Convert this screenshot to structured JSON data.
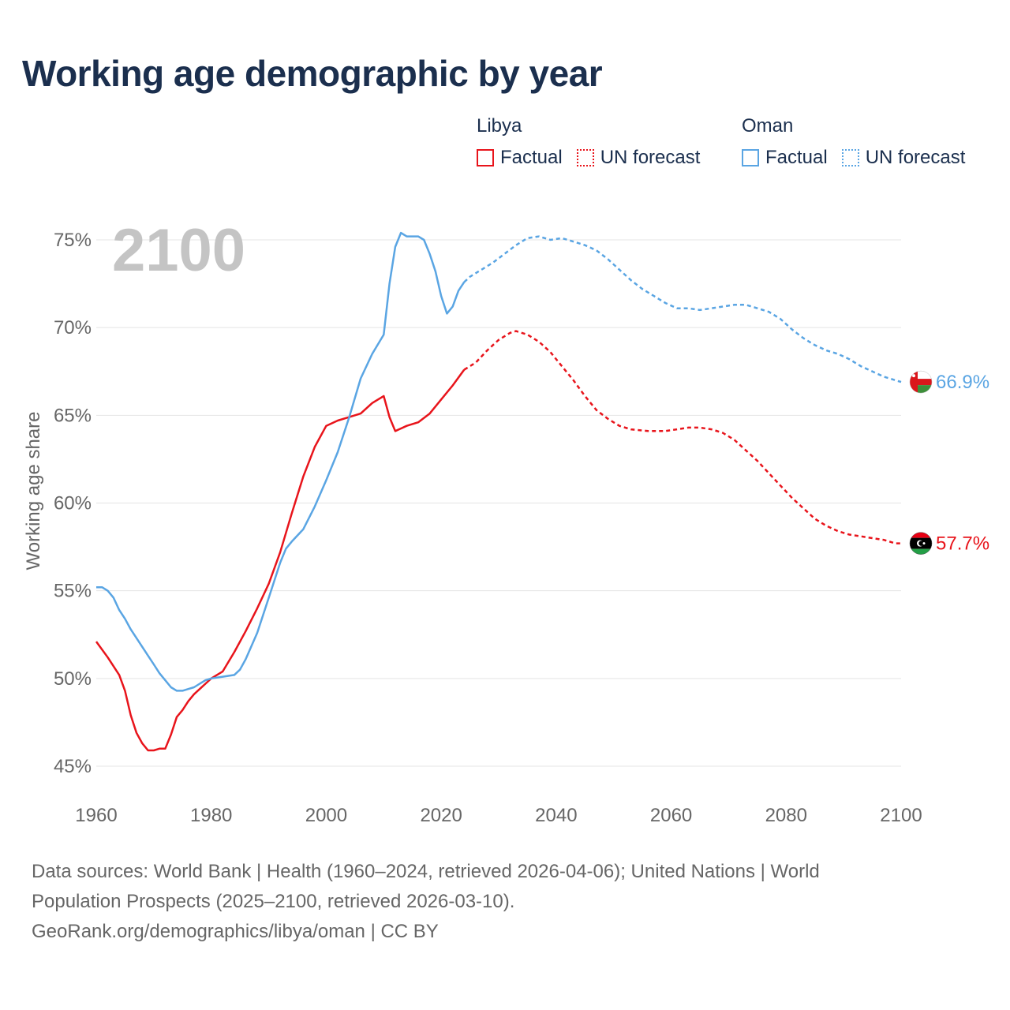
{
  "title": "Working age demographic by year",
  "year_watermark": "2100",
  "legend": [
    {
      "country": "Libya",
      "color": "#e8141b",
      "factual_label": "Factual",
      "forecast_label": "UN forecast"
    },
    {
      "country": "Oman",
      "color": "#5aa5e3",
      "factual_label": "Factual",
      "forecast_label": "UN forecast"
    }
  ],
  "footer": {
    "line1": "Data sources: World Bank | Health (1960–2024, retrieved 2026-04-06); United Nations | World",
    "line2": "Population Prospects (2025–2100, retrieved 2026-03-10).",
    "line3": "GeoRank.org/demographics/libya/oman | CC BY"
  },
  "chart_data": {
    "type": "line",
    "title": "Working age demographic by year",
    "xlabel": "",
    "ylabel": "Working age share",
    "xlim": [
      1960,
      2100
    ],
    "ylim": [
      45,
      75
    ],
    "x_ticks": [
      1960,
      1980,
      2000,
      2020,
      2040,
      2060,
      2080,
      2100
    ],
    "x_tick_labels": [
      "1960",
      "1980",
      "2000",
      "2020",
      "2040",
      "2060",
      "2080",
      "2100"
    ],
    "y_ticks": [
      45,
      50,
      55,
      60,
      65,
      70,
      75
    ],
    "y_tick_labels": [
      "45%",
      "50%",
      "55%",
      "60%",
      "65%",
      "70%",
      "75%"
    ],
    "grid": true,
    "forecast_start": 2025,
    "series": [
      {
        "name": "Libya",
        "color": "#e8141b",
        "end_label": "57.7%",
        "points": [
          [
            1960,
            52.1
          ],
          [
            1962,
            51.2
          ],
          [
            1964,
            50.2
          ],
          [
            1965,
            49.3
          ],
          [
            1966,
            47.9
          ],
          [
            1967,
            46.9
          ],
          [
            1968,
            46.3
          ],
          [
            1969,
            45.9
          ],
          [
            1970,
            45.9
          ],
          [
            1971,
            46.0
          ],
          [
            1972,
            46.0
          ],
          [
            1973,
            46.8
          ],
          [
            1974,
            47.8
          ],
          [
            1975,
            48.2
          ],
          [
            1976,
            48.7
          ],
          [
            1977,
            49.1
          ],
          [
            1978,
            49.4
          ],
          [
            1979,
            49.7
          ],
          [
            1980,
            50.0
          ],
          [
            1982,
            50.4
          ],
          [
            1984,
            51.5
          ],
          [
            1986,
            52.7
          ],
          [
            1988,
            54.0
          ],
          [
            1990,
            55.4
          ],
          [
            1992,
            57.2
          ],
          [
            1994,
            59.4
          ],
          [
            1996,
            61.5
          ],
          [
            1998,
            63.2
          ],
          [
            2000,
            64.4
          ],
          [
            2002,
            64.7
          ],
          [
            2004,
            64.9
          ],
          [
            2006,
            65.1
          ],
          [
            2008,
            65.7
          ],
          [
            2010,
            66.1
          ],
          [
            2011,
            64.9
          ],
          [
            2012,
            64.1
          ],
          [
            2014,
            64.4
          ],
          [
            2016,
            64.6
          ],
          [
            2018,
            65.1
          ],
          [
            2020,
            65.9
          ],
          [
            2022,
            66.7
          ],
          [
            2024,
            67.6
          ],
          [
            2026,
            68.0
          ],
          [
            2028,
            68.7
          ],
          [
            2030,
            69.3
          ],
          [
            2032,
            69.7
          ],
          [
            2033,
            69.8
          ],
          [
            2035,
            69.6
          ],
          [
            2037,
            69.2
          ],
          [
            2039,
            68.6
          ],
          [
            2041,
            67.8
          ],
          [
            2043,
            67.0
          ],
          [
            2045,
            66.1
          ],
          [
            2047,
            65.3
          ],
          [
            2049,
            64.8
          ],
          [
            2051,
            64.4
          ],
          [
            2053,
            64.2
          ],
          [
            2056,
            64.1
          ],
          [
            2059,
            64.1
          ],
          [
            2061,
            64.2
          ],
          [
            2063,
            64.3
          ],
          [
            2065,
            64.3
          ],
          [
            2067,
            64.2
          ],
          [
            2069,
            64.0
          ],
          [
            2071,
            63.6
          ],
          [
            2073,
            63.0
          ],
          [
            2075,
            62.4
          ],
          [
            2077,
            61.7
          ],
          [
            2079,
            61.0
          ],
          [
            2081,
            60.3
          ],
          [
            2083,
            59.7
          ],
          [
            2085,
            59.1
          ],
          [
            2087,
            58.7
          ],
          [
            2089,
            58.4
          ],
          [
            2091,
            58.2
          ],
          [
            2093,
            58.1
          ],
          [
            2095,
            58.0
          ],
          [
            2097,
            57.9
          ],
          [
            2099,
            57.7
          ],
          [
            2100,
            57.7
          ]
        ]
      },
      {
        "name": "Oman",
        "color": "#5aa5e3",
        "end_label": "66.9%",
        "points": [
          [
            1960,
            55.2
          ],
          [
            1961,
            55.2
          ],
          [
            1962,
            55.0
          ],
          [
            1963,
            54.6
          ],
          [
            1964,
            53.9
          ],
          [
            1965,
            53.4
          ],
          [
            1966,
            52.8
          ],
          [
            1967,
            52.3
          ],
          [
            1968,
            51.8
          ],
          [
            1969,
            51.3
          ],
          [
            1970,
            50.8
          ],
          [
            1971,
            50.3
          ],
          [
            1972,
            49.9
          ],
          [
            1973,
            49.5
          ],
          [
            1974,
            49.3
          ],
          [
            1975,
            49.3
          ],
          [
            1976,
            49.4
          ],
          [
            1977,
            49.5
          ],
          [
            1978,
            49.7
          ],
          [
            1979,
            49.9
          ],
          [
            1980,
            50.0
          ],
          [
            1982,
            50.1
          ],
          [
            1984,
            50.2
          ],
          [
            1985,
            50.5
          ],
          [
            1986,
            51.1
          ],
          [
            1988,
            52.6
          ],
          [
            1990,
            54.6
          ],
          [
            1992,
            56.6
          ],
          [
            1993,
            57.4
          ],
          [
            1994,
            57.8
          ],
          [
            1996,
            58.5
          ],
          [
            1998,
            59.8
          ],
          [
            2000,
            61.3
          ],
          [
            2002,
            62.9
          ],
          [
            2004,
            64.9
          ],
          [
            2006,
            67.1
          ],
          [
            2008,
            68.5
          ],
          [
            2010,
            69.6
          ],
          [
            2011,
            72.5
          ],
          [
            2012,
            74.6
          ],
          [
            2013,
            75.4
          ],
          [
            2014,
            75.2
          ],
          [
            2015,
            75.2
          ],
          [
            2016,
            75.2
          ],
          [
            2017,
            75.0
          ],
          [
            2018,
            74.2
          ],
          [
            2019,
            73.2
          ],
          [
            2020,
            71.8
          ],
          [
            2021,
            70.8
          ],
          [
            2022,
            71.2
          ],
          [
            2023,
            72.1
          ],
          [
            2024,
            72.6
          ],
          [
            2025,
            72.9
          ],
          [
            2027,
            73.3
          ],
          [
            2029,
            73.7
          ],
          [
            2031,
            74.2
          ],
          [
            2033,
            74.7
          ],
          [
            2035,
            75.1
          ],
          [
            2037,
            75.2
          ],
          [
            2039,
            75.0
          ],
          [
            2041,
            75.1
          ],
          [
            2043,
            74.9
          ],
          [
            2045,
            74.7
          ],
          [
            2047,
            74.4
          ],
          [
            2049,
            73.9
          ],
          [
            2051,
            73.3
          ],
          [
            2053,
            72.7
          ],
          [
            2055,
            72.2
          ],
          [
            2057,
            71.8
          ],
          [
            2059,
            71.4
          ],
          [
            2061,
            71.1
          ],
          [
            2063,
            71.1
          ],
          [
            2065,
            71.0
          ],
          [
            2067,
            71.1
          ],
          [
            2069,
            71.2
          ],
          [
            2071,
            71.3
          ],
          [
            2073,
            71.3
          ],
          [
            2075,
            71.1
          ],
          [
            2077,
            70.9
          ],
          [
            2079,
            70.5
          ],
          [
            2081,
            69.9
          ],
          [
            2083,
            69.4
          ],
          [
            2085,
            69.0
          ],
          [
            2087,
            68.7
          ],
          [
            2089,
            68.5
          ],
          [
            2091,
            68.2
          ],
          [
            2093,
            67.8
          ],
          [
            2095,
            67.5
          ],
          [
            2097,
            67.2
          ],
          [
            2099,
            67.0
          ],
          [
            2100,
            66.9
          ]
        ]
      }
    ]
  }
}
